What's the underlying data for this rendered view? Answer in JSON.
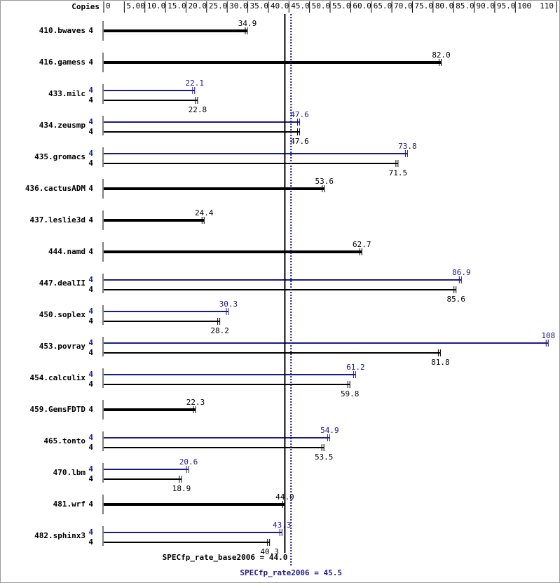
{
  "chart_data": {
    "type": "hbar",
    "categories": [
      "410.bwaves",
      "416.gamess",
      "433.milc",
      "434.zeusmp",
      "435.gromacs",
      "436.cactusADM",
      "437.leslie3d",
      "444.namd",
      "447.dealII",
      "450.soplex",
      "453.povray",
      "454.calculix",
      "459.GemsFDTD",
      "465.tonto",
      "470.lbm",
      "481.wrf",
      "482.sphinx3"
    ],
    "copies_label": "Copies",
    "series": [
      {
        "name": "SPECfp_rate2006",
        "color": "#1a1a8c",
        "values": [
          null,
          null,
          22.1,
          47.6,
          73.8,
          null,
          null,
          null,
          86.9,
          30.3,
          108,
          61.2,
          null,
          54.9,
          20.6,
          null,
          43.3
        ],
        "value_labels": [
          null,
          null,
          "22.1",
          "47.6",
          "73.8",
          null,
          null,
          null,
          "86.9",
          "30.3",
          "108",
          "61.2",
          null,
          "54.9",
          "20.6",
          null,
          "43.3"
        ],
        "copies": [
          null,
          null,
          4,
          4,
          4,
          null,
          null,
          null,
          4,
          4,
          4,
          4,
          null,
          4,
          4,
          null,
          4
        ]
      },
      {
        "name": "SPECfp_rate_base2006",
        "color": "#000000",
        "values": [
          34.9,
          82.0,
          22.8,
          47.6,
          71.5,
          53.6,
          24.4,
          62.7,
          85.6,
          28.2,
          81.8,
          59.8,
          22.3,
          53.5,
          18.9,
          44.0,
          40.3
        ],
        "value_labels": [
          "34.9",
          "82.0",
          "22.8",
          "47.6",
          "71.5",
          "53.6",
          "24.4",
          "62.7",
          "85.6",
          "28.2",
          "81.8",
          "59.8",
          "22.3",
          "53.5",
          "18.9",
          "44.0",
          "40.3"
        ],
        "copies": [
          4,
          4,
          4,
          4,
          4,
          4,
          4,
          4,
          4,
          4,
          4,
          4,
          4,
          4,
          4,
          4,
          4
        ]
      }
    ],
    "reference_lines": [
      {
        "label": "SPECfp_rate_base2006 = 44.0",
        "value": 44.0,
        "color": "#000000",
        "style": "solid"
      },
      {
        "label": "SPECfp_rate2006 = 45.5",
        "value": 45.5,
        "color": "#1a1a8c",
        "style": "dotted"
      }
    ],
    "xlim": [
      0,
      110
    ],
    "xticks": [
      0,
      {
        "value": 5,
        "label": "5.00"
      },
      {
        "value": 10,
        "label": "10.0"
      },
      {
        "value": 15,
        "label": "15.0"
      },
      {
        "value": 20,
        "label": "20.0"
      },
      {
        "value": 25,
        "label": "25.0"
      },
      {
        "value": 30,
        "label": "30.0"
      },
      {
        "value": 35,
        "label": "35.0"
      },
      {
        "value": 40,
        "label": "40.0"
      },
      {
        "value": 45,
        "label": "45.0"
      },
      {
        "value": 50,
        "label": "50.0"
      },
      {
        "value": 55,
        "label": "55.0"
      },
      {
        "value": 60,
        "label": "60.0"
      },
      {
        "value": 65,
        "label": "65.0"
      },
      {
        "value": 70,
        "label": "70.0"
      },
      {
        "value": 75,
        "label": "75.0"
      },
      {
        "value": 80,
        "label": "80.0"
      },
      {
        "value": 85,
        "label": "85.0"
      },
      {
        "value": 90,
        "label": "90.0"
      },
      {
        "value": 95,
        "label": "95.0"
      },
      100,
      110
    ]
  }
}
